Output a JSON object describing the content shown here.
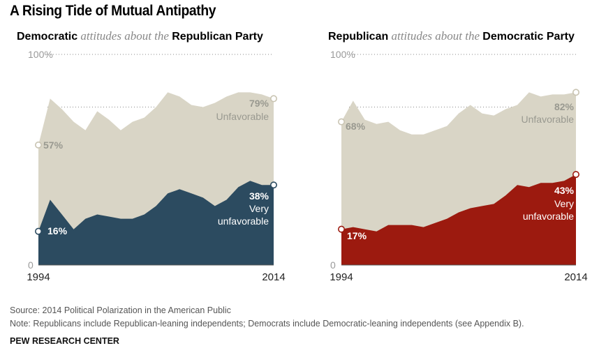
{
  "title": "A Rising Tide of Mutual Antipathy",
  "colors": {
    "unfavorable_area": "#d9d5c6",
    "dem_very_area": "#2c4b60",
    "rep_very_area": "#9c1a0f",
    "grid": "#888888",
    "label_light": "#999990"
  },
  "chart_data": [
    {
      "type": "area",
      "subtitle": {
        "part1": "Democratic",
        "part2": " attitudes about the ",
        "part3": "Republican Party"
      },
      "x": [
        1994,
        1995,
        1996,
        1997,
        1998,
        1999,
        2000,
        2001,
        2002,
        2003,
        2004,
        2005,
        2006,
        2007,
        2008,
        2009,
        2010,
        2011,
        2012,
        2013,
        2014
      ],
      "series": [
        {
          "name": "Unfavorable",
          "color": "#d9d5c6",
          "values": [
            57,
            79,
            74,
            68,
            64,
            73,
            69,
            64,
            68,
            70,
            75,
            82,
            80,
            76,
            75,
            77,
            80,
            82,
            82,
            81,
            79
          ]
        },
        {
          "name": "Very unfavorable",
          "color": "#2c4b60",
          "values": [
            16,
            31,
            24,
            17,
            22,
            24,
            23,
            22,
            22,
            24,
            28,
            34,
            36,
            34,
            32,
            28,
            31,
            37,
            40,
            38,
            38
          ]
        }
      ],
      "ylim": [
        0,
        100
      ],
      "y_tick_labels": [
        "100%",
        "0"
      ],
      "x_tick_labels": [
        "1994",
        "2014"
      ],
      "annotations": {
        "start_unfav": "57%",
        "end_unfav": "79%",
        "end_unfav_label": "Unfavorable",
        "start_very": "16%",
        "end_very": "38%",
        "end_very_label1": "Very",
        "end_very_label2": "unfavorable"
      }
    },
    {
      "type": "area",
      "subtitle": {
        "part1": "Republican",
        "part2": " attitudes about the ",
        "part3": "Democratic Party"
      },
      "x": [
        1994,
        1995,
        1996,
        1997,
        1998,
        1999,
        2000,
        2001,
        2002,
        2003,
        2004,
        2005,
        2006,
        2007,
        2008,
        2009,
        2010,
        2011,
        2012,
        2013,
        2014
      ],
      "series": [
        {
          "name": "Unfavorable",
          "color": "#d9d5c6",
          "values": [
            68,
            78,
            69,
            67,
            68,
            64,
            62,
            62,
            64,
            66,
            72,
            76,
            72,
            71,
            74,
            76,
            82,
            80,
            81,
            81,
            82
          ]
        },
        {
          "name": "Very unfavorable",
          "color": "#9c1a0f",
          "values": [
            17,
            18,
            17,
            16,
            19,
            19,
            19,
            18,
            20,
            22,
            25,
            27,
            28,
            29,
            33,
            38,
            37,
            39,
            39,
            40,
            43
          ]
        }
      ],
      "ylim": [
        0,
        100
      ],
      "y_tick_labels": [
        "100%",
        "0"
      ],
      "x_tick_labels": [
        "1994",
        "2014"
      ],
      "annotations": {
        "start_unfav": "68%",
        "end_unfav": "82%",
        "end_unfav_label": "Unfavorable",
        "start_very": "17%",
        "end_very": "43%",
        "end_very_label1": "Very",
        "end_very_label2": "unfavorable"
      }
    }
  ],
  "footer": {
    "source": "Source: 2014 Political Polarization in the American Public",
    "note": "Note: Republicans include Republican-leaning independents; Democrats include Democratic-leaning independents (see Appendix B).",
    "org": "PEW RESEARCH CENTER"
  }
}
